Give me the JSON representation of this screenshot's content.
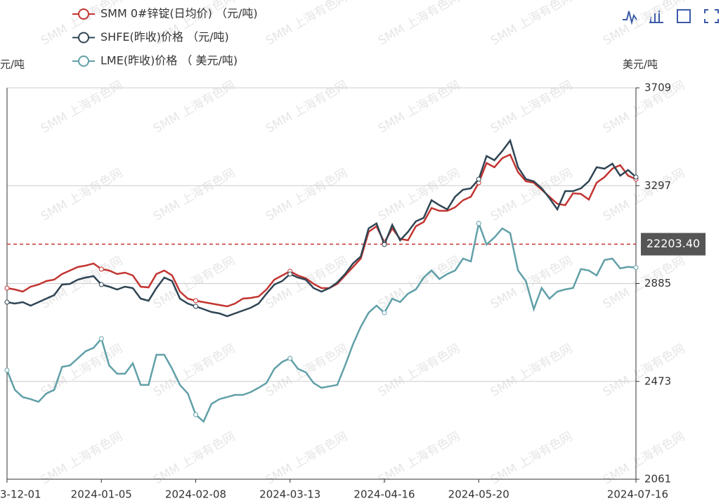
{
  "chart_data": {
    "type": "line",
    "watermark": "SMM 上海有色网",
    "ylabel": "元/吨",
    "y2label": "美元/吨",
    "ylim": [
      18000,
      25000
    ],
    "y2lim": [
      2061,
      3709
    ],
    "y2ticks": [
      2061,
      2473,
      2885,
      3297,
      3709
    ],
    "grid": true,
    "legend": "top-left",
    "categories": [
      "3-12-01",
      null,
      null,
      null,
      null,
      null,
      null,
      null,
      null,
      null,
      null,
      null,
      "2024-01-05",
      null,
      null,
      null,
      null,
      null,
      null,
      null,
      null,
      null,
      null,
      null,
      "2024-02-08",
      null,
      null,
      null,
      null,
      null,
      null,
      null,
      null,
      null,
      null,
      null,
      "2024-03-13",
      null,
      null,
      null,
      null,
      null,
      null,
      null,
      null,
      null,
      null,
      null,
      "2024-04-16",
      null,
      null,
      null,
      null,
      null,
      null,
      null,
      null,
      null,
      null,
      null,
      "2024-05-20",
      null,
      null,
      null,
      null,
      null,
      null,
      null,
      null,
      null,
      null,
      null,
      null,
      null,
      null,
      null,
      null,
      null,
      null,
      null,
      "2024-07-16"
    ],
    "series": [
      {
        "name": "SMM 0#锌锭(日均价) （元/吨)",
        "color": "#c23531",
        "values": [
          21418,
          21393,
          21355,
          21443,
          21481,
          21544,
          21569,
          21670,
          21732,
          21795,
          21820,
          21858,
          21758,
          21732,
          21670,
          21695,
          21644,
          21443,
          21431,
          21670,
          21732,
          21644,
          21355,
          21230,
          21192,
          21167,
          21142,
          21117,
          21091,
          21142,
          21230,
          21242,
          21267,
          21393,
          21569,
          21644,
          21720,
          21644,
          21594,
          21494,
          21418,
          21418,
          21494,
          21644,
          21795,
          21946,
          22424,
          22524,
          22235,
          22486,
          22298,
          22273,
          22524,
          22600,
          22851,
          22801,
          22801,
          22863,
          22989,
          23052,
          23303,
          23655,
          23580,
          23743,
          23806,
          23492,
          23328,
          23303,
          23178,
          23052,
          22926,
          22901,
          23115,
          23102,
          23002,
          23303,
          23404,
          23555,
          23617,
          23429,
          23366
        ]
      },
      {
        "name": "SHFE(昨收)价格 （元/吨)",
        "color": "#2f4554",
        "values": [
          21167,
          21142,
          21167,
          21104,
          21167,
          21230,
          21293,
          21481,
          21494,
          21569,
          21607,
          21632,
          21481,
          21443,
          21393,
          21443,
          21418,
          21230,
          21192,
          21418,
          21607,
          21544,
          21230,
          21142,
          21091,
          21041,
          20991,
          20966,
          20915,
          20966,
          21016,
          21066,
          21142,
          21318,
          21481,
          21544,
          21670,
          21607,
          21569,
          21418,
          21355,
          21418,
          21519,
          21670,
          21858,
          21984,
          22486,
          22574,
          22197,
          22549,
          22273,
          22424,
          22612,
          22675,
          22989,
          22901,
          22826,
          23052,
          23178,
          23203,
          23366,
          23781,
          23705,
          23869,
          24057,
          23580,
          23366,
          23328,
          23203,
          23027,
          22826,
          23152,
          23152,
          23203,
          23328,
          23580,
          23555,
          23643,
          23429,
          23529,
          23404
        ]
      },
      {
        "name": "LME(昨收)价格 （ 美元/吨)",
        "color": "#61a0a8",
        "axis": "y2",
        "values": [
          2520,
          2437,
          2407,
          2398,
          2387,
          2422,
          2437,
          2534,
          2540,
          2570,
          2600,
          2614,
          2653,
          2540,
          2505,
          2505,
          2549,
          2458,
          2458,
          2585,
          2585,
          2526,
          2458,
          2422,
          2333,
          2304,
          2378,
          2398,
          2407,
          2416,
          2416,
          2428,
          2446,
          2466,
          2526,
          2555,
          2570,
          2526,
          2511,
          2466,
          2446,
          2452,
          2458,
          2540,
          2629,
          2703,
          2762,
          2792,
          2762,
          2821,
          2807,
          2842,
          2860,
          2910,
          2940,
          2904,
          2925,
          2940,
          2990,
          2978,
          3138,
          3049,
          3079,
          3117,
          3097,
          2940,
          2895,
          2777,
          2866,
          2821,
          2851,
          2860,
          2866,
          2946,
          2940,
          2919,
          2984,
          2990,
          2949,
          2955,
          2952
        ]
      }
    ],
    "mark_line": {
      "value": 22203.4,
      "label": "22203.40"
    }
  }
}
